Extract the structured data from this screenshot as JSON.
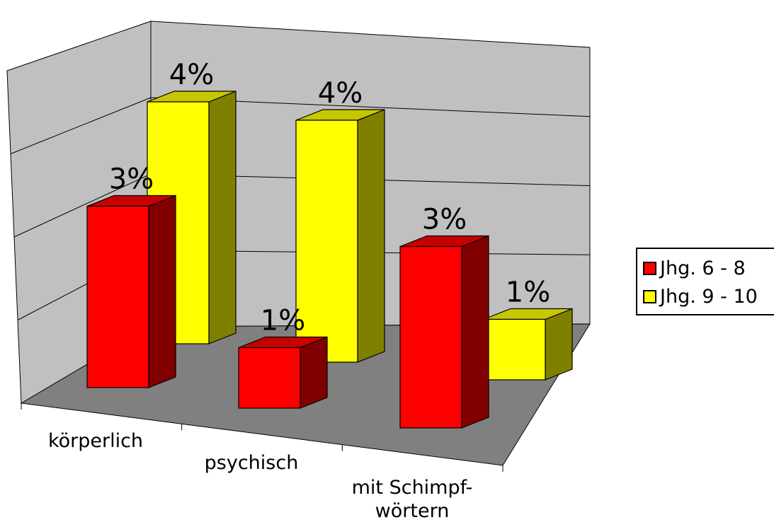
{
  "chart_data": {
    "type": "bar",
    "categories": [
      "körperlich",
      "psychisch",
      "mit Schimpf-wörtern"
    ],
    "category_lines": [
      [
        "körperlich"
      ],
      [
        "psychisch"
      ],
      [
        "mit Schimpf-",
        "wörtern"
      ]
    ],
    "series": [
      {
        "name": "Jhg. 6 - 8",
        "values": [
          3,
          1,
          3
        ],
        "labels": [
          "3%",
          "1%",
          "3%"
        ],
        "color": "#ff0000"
      },
      {
        "name": "Jhg. 9 - 10",
        "values": [
          4,
          4,
          1
        ],
        "labels": [
          "4%",
          "4%",
          "1%"
        ],
        "color": "#ffff00"
      }
    ],
    "ylim": [
      0,
      4
    ],
    "grid": true,
    "legend_position": "right",
    "three_d": true
  }
}
